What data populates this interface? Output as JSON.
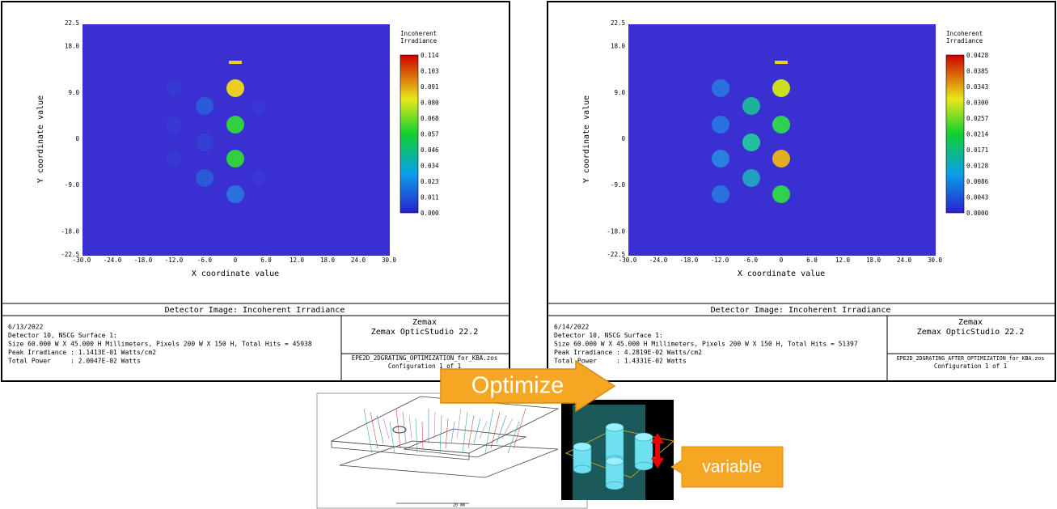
{
  "panels": [
    {
      "y_label": "Y coordinate value",
      "x_label": "X coordinate value",
      "y_ticks": [
        "22.5",
        "18.0",
        "9.0",
        "0",
        "-9.0",
        "-18.0",
        "-22.5"
      ],
      "x_ticks": [
        "-30.0",
        "-24.0",
        "-18.0",
        "-12.0",
        "-6.0",
        "0",
        "6.0",
        "12.0",
        "18.0",
        "24.0",
        "30.0"
      ],
      "colorbar_title": [
        "Incoherent",
        "Irradiance"
      ],
      "colorbar_ticks": [
        "0.114",
        "0.103",
        "0.091",
        "0.080",
        "0.068",
        "0.057",
        "0.046",
        "0.034",
        "0.023",
        "0.011",
        "0.000"
      ],
      "footer_title": "Detector Image: Incoherent Irradiance",
      "info": [
        "6/13/2022",
        "Detector 10, NSCG Surface 1:",
        "Size 60.000 W X 45.000 H Millimeters, Pixels 200 W X 150 H, Total Hits = 45938",
        "Peak Irradiance : 1.1413E-01 Watts/cm2",
        "Total Power     : 2.0047E-02 Watts"
      ],
      "software": [
        "Zemax",
        "Zemax OpticStudio 22.2"
      ],
      "file": "EPE2D_2DGRATING_OPTIMIZATION_for_KBA.zos",
      "configuration": "Configuration 1 of 1"
    },
    {
      "y_label": "Y coordinate value",
      "x_label": "X coordinate value",
      "y_ticks": [
        "22.5",
        "18.0",
        "9.0",
        "0",
        "-9.0",
        "-18.0",
        "-22.5"
      ],
      "x_ticks": [
        "-30.0",
        "-24.0",
        "-18.0",
        "-12.0",
        "-6.0",
        "0",
        "6.0",
        "12.0",
        "18.0",
        "24.0",
        "30.0"
      ],
      "colorbar_title": [
        "Incoherent",
        "Irradiance"
      ],
      "colorbar_ticks": [
        "0.0428",
        "0.0385",
        "0.0343",
        "0.0300",
        "0.0257",
        "0.0214",
        "0.0171",
        "0.0128",
        "0.0086",
        "0.0043",
        "0.0000"
      ],
      "footer_title": "Detector Image: Incoherent Irradiance",
      "info": [
        "6/14/2022",
        "Detector 10, NSCG Surface 1:",
        "Size 60.000 W X 45.000 H Millimeters, Pixels 200 W X 150 H, Total Hits = 51397",
        "Peak Irradiance : 4.2819E-02 Watts/cm2",
        "Total Power     : 1.4331E-02 Watts"
      ],
      "software": [
        "Zemax",
        "Zemax OpticStudio 22.2"
      ],
      "file": "EPE2D_2DGRATING_AFTER_OPTIMIZATION_for_KBA.zos",
      "configuration": "Configuration 1 of 1"
    }
  ],
  "arrow_label": "Optimize",
  "callout": "variable",
  "scale_bar": "20 mm"
}
